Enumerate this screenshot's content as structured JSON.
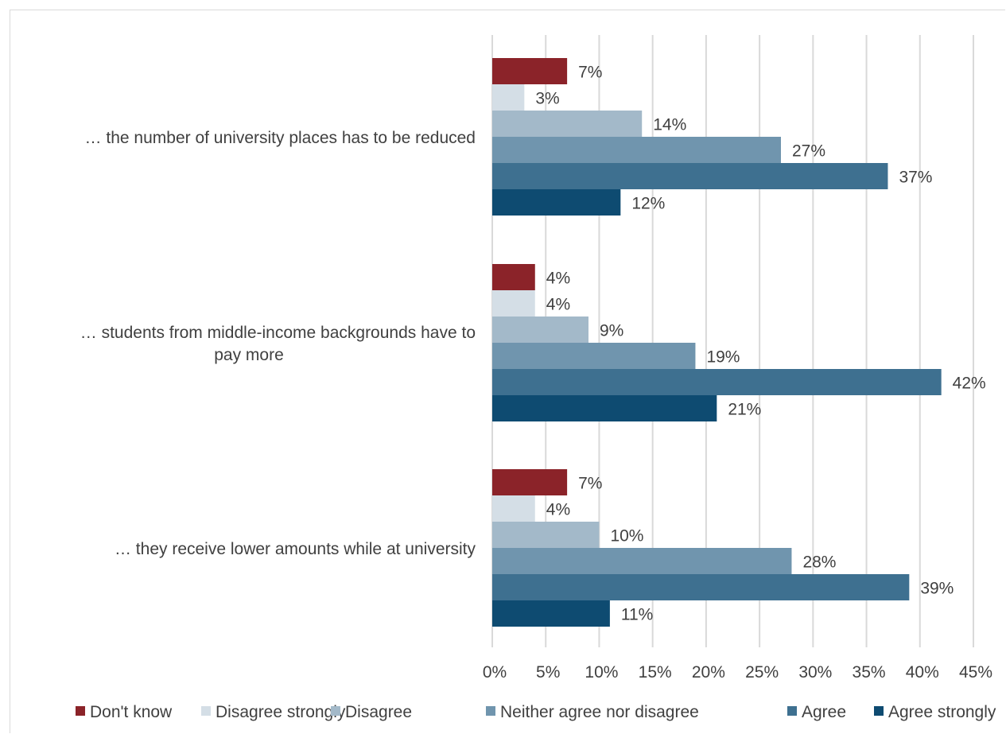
{
  "chart_data": {
    "type": "bar",
    "orientation": "horizontal",
    "categories": [
      [
        "… the number of university places has to be reduced"
      ],
      [
        "… students from middle-income backgrounds have to",
        "pay more"
      ],
      [
        "… they receive lower amounts while at university"
      ]
    ],
    "series": [
      {
        "name": "Don't know",
        "color": "#8b2329",
        "values": [
          7,
          4,
          7
        ],
        "labels": [
          "7%",
          "4%",
          "7%"
        ]
      },
      {
        "name": "Disagree strongly",
        "color": "#d4dee6",
        "values": [
          3,
          4,
          4
        ],
        "labels": [
          "3%",
          "4%",
          "4%"
        ]
      },
      {
        "name": "Disagree",
        "color": "#a3b9c9",
        "values": [
          14,
          9,
          10
        ],
        "labels": [
          "14%",
          "9%",
          "10%"
        ]
      },
      {
        "name": "Neither agree nor disagree",
        "color": "#7095ae",
        "values": [
          27,
          19,
          28
        ],
        "labels": [
          "27%",
          "19%",
          "28%"
        ]
      },
      {
        "name": "Agree",
        "color": "#3e7090",
        "values": [
          37,
          42,
          39
        ],
        "labels": [
          "37%",
          "42%",
          "39%"
        ]
      },
      {
        "name": "Agree strongly",
        "color": "#0e4b71",
        "values": [
          12,
          21,
          11
        ],
        "labels": [
          "12%",
          "21%",
          "11%"
        ]
      }
    ],
    "xlim": [
      0,
      45
    ],
    "x_ticks": [
      "0%",
      "5%",
      "10%",
      "15%",
      "20%",
      "25%",
      "30%",
      "35%",
      "40%",
      "45%"
    ],
    "grid": "vertical",
    "legend": "bottom",
    "title": "",
    "xlabel": "",
    "ylabel": ""
  }
}
